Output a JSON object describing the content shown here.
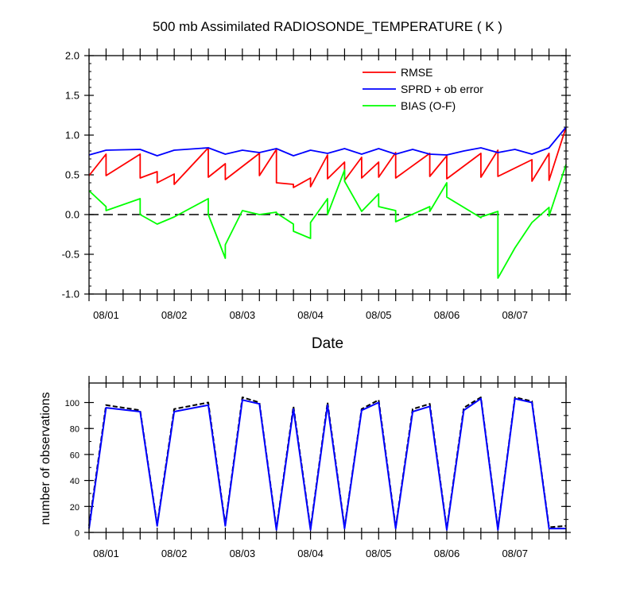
{
  "chart_data": [
    {
      "type": "line",
      "title": "500 mb Assimilated RADIOSONDE_TEMPERATURE ( K )",
      "xlabel": "Date",
      "ylabel": "",
      "x_tick_labels": [
        "08/01",
        "08/02",
        "08/03",
        "08/04",
        "08/05",
        "08/06",
        "08/07"
      ],
      "y_tick_labels": [
        "-1.0",
        "-0.5",
        "0.0",
        "0.5",
        "1.0",
        "1.5",
        "2.0"
      ],
      "ylim": [
        -1.0,
        2.0
      ],
      "xlim_days": [
        0.0,
        7.0
      ],
      "legend_position": "top-right",
      "zero_line": "dashed",
      "series": [
        {
          "name": "RMSE",
          "color": "#ff0000",
          "x": [
            0.0,
            0.25,
            0.25,
            0.75,
            0.75,
            1.0,
            1.0,
            1.25,
            1.25,
            1.75,
            1.75,
            2.0,
            2.0,
            2.5,
            2.5,
            2.75,
            2.75,
            3.0,
            3.0,
            3.25,
            3.25,
            3.5,
            3.5,
            3.75,
            3.75,
            4.0,
            4.0,
            4.25,
            4.25,
            4.5,
            4.5,
            5.0,
            5.0,
            5.25,
            5.25,
            5.75,
            5.75,
            6.0,
            6.0,
            6.5,
            6.5,
            6.75,
            6.75,
            7.0
          ],
          "y": [
            0.49,
            0.76,
            0.49,
            0.76,
            0.46,
            0.54,
            0.4,
            0.51,
            0.38,
            0.84,
            0.47,
            0.64,
            0.44,
            0.77,
            0.49,
            0.82,
            0.4,
            0.38,
            0.34,
            0.46,
            0.35,
            0.75,
            0.45,
            0.66,
            0.43,
            0.72,
            0.46,
            0.66,
            0.47,
            0.78,
            0.46,
            0.77,
            0.48,
            0.74,
            0.45,
            0.77,
            0.47,
            0.81,
            0.48,
            0.69,
            0.42,
            0.77,
            0.43,
            1.1
          ]
        },
        {
          "name": "SPRD + ob error",
          "color": "#0000ff",
          "x": [
            0.0,
            0.25,
            0.75,
            1.0,
            1.25,
            1.75,
            2.0,
            2.25,
            2.5,
            2.75,
            3.0,
            3.25,
            3.5,
            3.75,
            4.0,
            4.25,
            4.5,
            4.75,
            5.0,
            5.25,
            5.5,
            5.75,
            6.0,
            6.25,
            6.5,
            6.75,
            7.0
          ],
          "y": [
            0.75,
            0.81,
            0.82,
            0.74,
            0.81,
            0.84,
            0.76,
            0.81,
            0.78,
            0.83,
            0.74,
            0.81,
            0.77,
            0.83,
            0.76,
            0.83,
            0.76,
            0.82,
            0.76,
            0.75,
            0.8,
            0.84,
            0.78,
            0.82,
            0.76,
            0.84,
            1.1
          ]
        },
        {
          "name": "BIAS (O-F)",
          "color": "#00ff00",
          "x": [
            0.0,
            0.25,
            0.25,
            0.75,
            0.75,
            1.0,
            1.25,
            1.75,
            1.75,
            2.0,
            2.0,
            2.25,
            2.5,
            2.75,
            2.75,
            3.0,
            3.0,
            3.25,
            3.25,
            3.5,
            3.5,
            3.75,
            3.75,
            4.0,
            4.0,
            4.25,
            4.25,
            4.5,
            4.5,
            5.0,
            5.0,
            5.25,
            5.25,
            5.75,
            5.75,
            6.0,
            6.0,
            6.25,
            6.5,
            6.75,
            6.75,
            7.0
          ],
          "y": [
            0.3,
            0.1,
            0.05,
            0.2,
            0.0,
            -0.12,
            -0.03,
            0.2,
            0.0,
            -0.55,
            -0.38,
            0.05,
            0.0,
            0.03,
            0.02,
            -0.12,
            -0.21,
            -0.3,
            -0.1,
            0.2,
            0.0,
            0.56,
            0.42,
            0.04,
            0.04,
            0.26,
            0.1,
            0.05,
            -0.09,
            0.1,
            0.04,
            0.4,
            0.22,
            -0.04,
            -0.03,
            0.04,
            -0.8,
            -0.42,
            -0.1,
            0.09,
            -0.02,
            0.63
          ]
        }
      ]
    },
    {
      "type": "line",
      "title": "",
      "xlabel": "",
      "ylabel": "number of observations",
      "x_tick_labels": [
        "08/01",
        "08/02",
        "08/03",
        "08/04",
        "08/05",
        "08/06",
        "08/07"
      ],
      "y_tick_labels": [
        "0",
        "20",
        "40",
        "60",
        "80",
        "100"
      ],
      "ylim": [
        0,
        115
      ],
      "xlim_days": [
        0.0,
        7.0
      ],
      "series": [
        {
          "color": "#000000",
          "dash": "dashed",
          "x": [
            0.0,
            0.25,
            0.75,
            1.0,
            1.25,
            1.75,
            2.0,
            2.25,
            2.5,
            2.75,
            3.0,
            3.25,
            3.5,
            3.75,
            4.0,
            4.25,
            4.5,
            4.75,
            5.0,
            5.25,
            5.5,
            5.75,
            6.0,
            6.25,
            6.5,
            6.75,
            7.0
          ],
          "y": [
            5,
            98,
            94,
            6,
            95,
            100,
            6,
            104,
            100,
            3,
            97,
            3,
            100,
            4,
            95,
            102,
            4,
            95,
            99,
            3,
            96,
            104,
            3,
            104,
            101,
            4,
            5
          ]
        },
        {
          "color": "#0000ff",
          "dash": "solid",
          "x": [
            0.0,
            0.25,
            0.75,
            1.0,
            1.25,
            1.75,
            2.0,
            2.25,
            2.5,
            2.75,
            3.0,
            3.25,
            3.5,
            3.75,
            4.0,
            4.25,
            4.5,
            4.75,
            5.0,
            5.25,
            5.5,
            5.75,
            6.0,
            6.25,
            6.5,
            6.75,
            7.0
          ],
          "y": [
            3,
            96,
            93,
            5,
            93,
            98,
            5,
            102,
            99,
            2,
            95,
            2,
            98,
            3,
            94,
            100,
            3,
            93,
            97,
            2,
            94,
            103,
            2,
            103,
            100,
            3,
            3
          ]
        }
      ]
    }
  ]
}
